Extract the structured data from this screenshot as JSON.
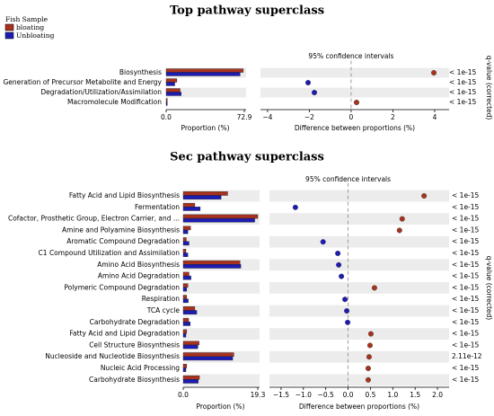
{
  "chart_data": [
    {
      "type": "extended_error_bar",
      "title": "Top pathway superclass",
      "legend_title": "Fish Sample",
      "categories": [
        "Biosynthesis",
        "Generation of Precursor Metabolite and Energy",
        "Degradation/Utilization/Assimilation",
        "Macromolecule Modification"
      ],
      "category_colors": [
        "#000000",
        "#000000",
        "#000000",
        "#000000"
      ],
      "series": [
        {
          "name": "bloating",
          "color": "#a8321e",
          "values": [
            72,
            10,
            13,
            1
          ]
        },
        {
          "name": "Unbloating",
          "color": "#1c1cb4",
          "values": [
            69,
            8,
            14,
            1
          ]
        }
      ],
      "xlabel": "Proportion (%)",
      "xlim": [
        0,
        72.9
      ],
      "xticks": [
        {
          "value": 0,
          "label": "0.0"
        },
        72.9
      ],
      "ci_label": "95% confidence intervals",
      "diff_values": [
        3.96,
        -2.06,
        -1.76,
        0.26
      ],
      "diff_xlabel": "Difference between proportions (%)",
      "diff_xlim": [
        -4.34,
        4.69
      ],
      "diff_xticks": [
        {
          "value": -4,
          "label": "−4"
        },
        {
          "value": -2,
          "label": "−2"
        },
        0,
        2,
        4
      ],
      "pvalues": [
        "< 1e-15",
        "< 1e-15",
        "< 1e-15",
        "< 1e-15"
      ],
      "pvalue_axis_label": "q-value (corrected)"
    },
    {
      "type": "extended_error_bar",
      "title": "Sec pathway superclass",
      "categories": [
        "Fatty Acid and Lipid Biosynthesis",
        "Fermentation",
        "Cofactor, Prosthetic Group, Electron Carrier, and ...",
        "Amine and Polyamine Biosynthesis",
        "Aromatic Compound Degradation",
        "C1 Compound Utilization and Assimilation",
        "Amino Acid Biosynthesis",
        "Amino Acid Degradation",
        "Polymeric Compound Degradation",
        "Respiration",
        "TCA cycle",
        "Carbohydrate Degradation",
        "Fatty Acid and Lipid Degradation",
        "Cell Structure Biosynthesis",
        "Nucleoside and Nucleotide Biosynthesis",
        "Nucleic Acid Processing",
        "Carbohydrate Biosynthesis"
      ],
      "category_colors": [
        "#b5261c",
        "#000000",
        "#b5261c",
        "#b5261c",
        "#000000",
        "#000000",
        "#b5261c",
        "#000000",
        "#000000",
        "#000000",
        "#000000",
        "#000000",
        "#000000",
        "#b5261c",
        "#b5261c",
        "#000000",
        "#b5261c"
      ],
      "series": [
        {
          "name": "bloating",
          "color": "#a8321e",
          "values": [
            11.5,
            3.0,
            19.3,
            1.9,
            0.8,
            0.7,
            14.7,
            1.5,
            1.2,
            0.9,
            3.0,
            1.4,
            0.9,
            4.1,
            13.1,
            0.9,
            4.2
          ]
        },
        {
          "name": "Unbloating",
          "color": "#1c1cb4",
          "values": [
            9.8,
            4.4,
            18.5,
            1.2,
            1.5,
            1.2,
            14.9,
            2.0,
            0.9,
            1.3,
            3.5,
            1.8,
            0.7,
            3.8,
            12.8,
            0.7,
            3.9
          ]
        }
      ],
      "xlabel": "Proportion (%)",
      "xlim": [
        0,
        19.3
      ],
      "xticks": [
        {
          "value": 0,
          "label": "0.0"
        },
        19.3
      ],
      "ci_label": "95% confidence intervals",
      "diff_values": [
        1.7,
        -1.18,
        1.21,
        1.15,
        -0.56,
        -0.23,
        -0.21,
        -0.15,
        0.59,
        -0.07,
        -0.03,
        -0.01,
        0.51,
        0.49,
        0.47,
        0.45,
        0.45
      ],
      "diff_xlabel": "Difference between proportions (%)",
      "diff_xlim": [
        -1.76,
        2.26
      ],
      "diff_xticks": [
        {
          "value": -1.5,
          "label": "−1.5"
        },
        {
          "value": -1,
          "label": "−1.0"
        },
        {
          "value": -0.5,
          "label": "−0.5"
        },
        {
          "value": 0,
          "label": "0.0"
        },
        0.5,
        {
          "value": 1,
          "label": "1.0"
        },
        1.5,
        {
          "value": 2,
          "label": "2.0"
        }
      ],
      "pvalues": [
        "< 1e-15",
        "< 1e-15",
        "< 1e-15",
        "< 1e-15",
        "< 1e-15",
        "< 1e-15",
        "< 1e-15",
        "< 1e-15",
        "< 1e-15",
        "< 1e-15",
        "< 1e-15",
        "< 1e-15",
        "< 1e-15",
        "< 1e-15",
        "2.11e-12",
        "< 1e-15",
        "< 1e-15"
      ],
      "pvalue_axis_label": "q-value (corrected)"
    }
  ]
}
